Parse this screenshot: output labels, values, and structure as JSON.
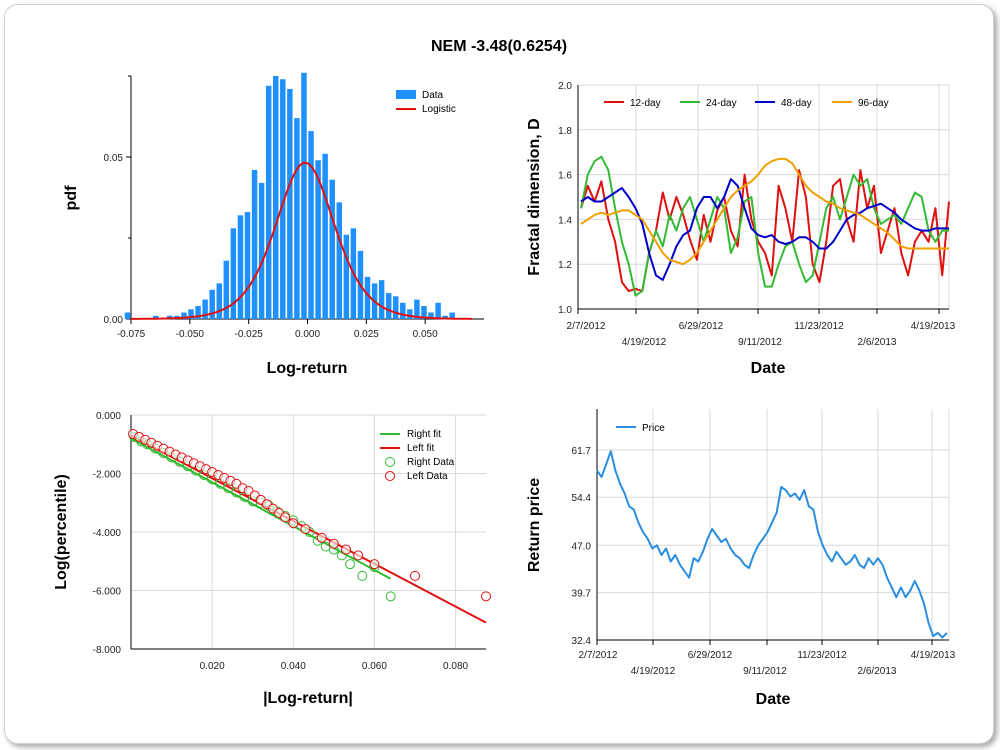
{
  "title": "NEM -3.48(0.6254)",
  "colors": {
    "blue": "#1e90ff",
    "red": "#e01010",
    "green": "#33bb33",
    "dblue": "#0000cc",
    "orange": "#f0a000",
    "price": "#2a8ee0",
    "grid": "#d9d9d9"
  },
  "chart_data": [
    {
      "id": "histogram",
      "type": "bar",
      "xlabel": "Log-return",
      "ylabel": "pdf",
      "xlim": [
        -0.075,
        0.075
      ],
      "ylim": [
        0,
        0.075
      ],
      "xticks": [
        -0.075,
        -0.05,
        -0.025,
        0.0,
        0.025,
        0.05
      ],
      "xtick_labels": [
        "-0.075",
        "-0.050",
        "-0.025",
        "0.000",
        "0.025",
        "0.050"
      ],
      "yticks": [
        0,
        0.05
      ],
      "ytick_labels": [
        "0.00",
        "0.05"
      ],
      "bin_width": 0.003,
      "x": [
        -0.0765,
        -0.0735,
        -0.0705,
        -0.0675,
        -0.0645,
        -0.0615,
        -0.0585,
        -0.0555,
        -0.0525,
        -0.0495,
        -0.0465,
        -0.0435,
        -0.0405,
        -0.0375,
        -0.0345,
        -0.0315,
        -0.0285,
        -0.0255,
        -0.0225,
        -0.0195,
        -0.0165,
        -0.0135,
        -0.0105,
        -0.0075,
        -0.0045,
        -0.0015,
        0.0015,
        0.0045,
        0.0075,
        0.0105,
        0.0135,
        0.0165,
        0.0195,
        0.0225,
        0.0255,
        0.0285,
        0.0315,
        0.0345,
        0.0375,
        0.0405,
        0.0435,
        0.0465,
        0.0495,
        0.0525,
        0.0555,
        0.0585,
        0.0615
      ],
      "values": [
        0.002,
        0,
        0,
        0,
        0.001,
        0,
        0.001,
        0.001,
        0.002,
        0.003,
        0.004,
        0.006,
        0.009,
        0.011,
        0.018,
        0.028,
        0.032,
        0.033,
        0.046,
        0.042,
        0.072,
        0.075,
        0.074,
        0.071,
        0.062,
        0.076,
        0.058,
        0.049,
        0.051,
        0.043,
        0.036,
        0.026,
        0.028,
        0.021,
        0.013,
        0.011,
        0.012,
        0.008,
        0.007,
        0.005,
        0.003,
        0.006,
        0.004,
        0.002,
        0.005,
        0.001,
        0.002
      ],
      "legend": [
        "Data",
        "Logistic"
      ],
      "fit": {
        "name": "Logistic",
        "mu": -0.001,
        "s": 0.0084
      }
    },
    {
      "id": "fractal",
      "type": "line",
      "xlabel": "Date",
      "ylabel": "Fractal dimension, D",
      "ylim": [
        1.0,
        2.0
      ],
      "yticks": [
        1.0,
        1.2,
        1.4,
        1.6,
        1.8,
        2.0
      ],
      "ytick_labels": [
        "1.0",
        "1.2",
        "1.4",
        "1.6",
        "1.8",
        "2.0"
      ],
      "xtick_labels_top": [
        "2/7/2012",
        "6/29/2012",
        "11/23/2012",
        "4/19/2013"
      ],
      "xtick_labels_bottom": [
        "4/19/2012",
        "9/11/2012",
        "2/6/2013"
      ],
      "series": [
        {
          "name": "12-day",
          "color_key": "red",
          "values": [
            1.45,
            1.55,
            1.48,
            1.57,
            1.4,
            1.3,
            1.12,
            1.08,
            1.09,
            1.08,
            1.25,
            1.35,
            1.52,
            1.4,
            1.5,
            1.42,
            1.31,
            1.22,
            1.42,
            1.3,
            1.44,
            1.5,
            1.35,
            1.28,
            1.6,
            1.4,
            1.3,
            1.25,
            1.15,
            1.55,
            1.45,
            1.3,
            1.62,
            1.5,
            1.2,
            1.12,
            1.3,
            1.55,
            1.58,
            1.4,
            1.3,
            1.62,
            1.45,
            1.55,
            1.25,
            1.35,
            1.45,
            1.25,
            1.15,
            1.3,
            1.35,
            1.3,
            1.45,
            1.15,
            1.48
          ]
        },
        {
          "name": "24-day",
          "color_key": "green",
          "values": [
            1.45,
            1.6,
            1.66,
            1.68,
            1.62,
            1.45,
            1.3,
            1.2,
            1.06,
            1.08,
            1.25,
            1.35,
            1.28,
            1.42,
            1.35,
            1.45,
            1.5,
            1.4,
            1.3,
            1.4,
            1.5,
            1.45,
            1.25,
            1.32,
            1.48,
            1.5,
            1.25,
            1.1,
            1.1,
            1.2,
            1.28,
            1.3,
            1.2,
            1.12,
            1.15,
            1.3,
            1.45,
            1.5,
            1.4,
            1.5,
            1.6,
            1.55,
            1.58,
            1.45,
            1.38,
            1.4,
            1.42,
            1.38,
            1.45,
            1.52,
            1.5,
            1.35,
            1.3,
            1.35,
            1.35
          ]
        },
        {
          "name": "48-day",
          "color_key": "dblue",
          "values": [
            1.48,
            1.5,
            1.48,
            1.48,
            1.5,
            1.52,
            1.54,
            1.5,
            1.45,
            1.38,
            1.25,
            1.15,
            1.13,
            1.2,
            1.28,
            1.33,
            1.35,
            1.45,
            1.5,
            1.5,
            1.45,
            1.5,
            1.58,
            1.55,
            1.45,
            1.36,
            1.33,
            1.32,
            1.33,
            1.3,
            1.29,
            1.3,
            1.32,
            1.32,
            1.3,
            1.27,
            1.27,
            1.3,
            1.35,
            1.4,
            1.42,
            1.43,
            1.45,
            1.46,
            1.47,
            1.45,
            1.43,
            1.4,
            1.38,
            1.36,
            1.35,
            1.35,
            1.36,
            1.36,
            1.36
          ]
        },
        {
          "name": "96-day",
          "color_key": "orange",
          "values": [
            1.38,
            1.4,
            1.42,
            1.43,
            1.42,
            1.43,
            1.44,
            1.44,
            1.42,
            1.4,
            1.35,
            1.3,
            1.25,
            1.22,
            1.21,
            1.2,
            1.22,
            1.25,
            1.3,
            1.35,
            1.4,
            1.45,
            1.5,
            1.53,
            1.55,
            1.57,
            1.6,
            1.64,
            1.66,
            1.67,
            1.67,
            1.65,
            1.6,
            1.55,
            1.52,
            1.5,
            1.48,
            1.47,
            1.45,
            1.44,
            1.43,
            1.42,
            1.4,
            1.38,
            1.36,
            1.34,
            1.31,
            1.28,
            1.27,
            1.27,
            1.27,
            1.27,
            1.27,
            1.27,
            1.27
          ]
        }
      ]
    },
    {
      "id": "tail",
      "type": "scatter",
      "xlabel": "|Log-return|",
      "ylabel": "Log(percentile)",
      "xlim": [
        0,
        0.0875
      ],
      "ylim": [
        -8.0,
        0.0
      ],
      "xticks": [
        0.02,
        0.04,
        0.06,
        0.08
      ],
      "xtick_labels": [
        "0.020",
        "0.040",
        "0.060",
        "0.080"
      ],
      "yticks": [
        0,
        -2,
        -4,
        -6,
        -8
      ],
      "ytick_labels": [
        "0.000",
        "-2.000",
        "-4.000",
        "-6.000",
        "-8.000"
      ],
      "legend": [
        "Right fit",
        "Left fit",
        "Right Data",
        "Left Data"
      ],
      "right_fit": {
        "x": [
          0.0,
          0.064
        ],
        "y": [
          -0.8,
          -5.6
        ]
      },
      "left_fit": {
        "x": [
          0.0,
          0.0875
        ],
        "y": [
          -0.7,
          -7.1
        ]
      },
      "right_data": {
        "x": [
          0.0008,
          0.0025,
          0.004,
          0.006,
          0.008,
          0.01,
          0.012,
          0.014,
          0.016,
          0.018,
          0.02,
          0.022,
          0.024,
          0.026,
          0.028,
          0.03,
          0.032,
          0.034,
          0.036,
          0.038,
          0.04,
          0.042,
          0.044,
          0.046,
          0.048,
          0.05,
          0.052,
          0.054,
          0.057,
          0.06,
          0.064
        ],
        "y": [
          -0.75,
          -0.9,
          -1.0,
          -1.15,
          -1.3,
          -1.45,
          -1.6,
          -1.75,
          -1.9,
          -2.05,
          -2.2,
          -2.35,
          -2.5,
          -2.65,
          -2.8,
          -2.95,
          -3.0,
          -3.1,
          -3.3,
          -3.45,
          -3.6,
          -3.8,
          -4.0,
          -4.3,
          -4.5,
          -4.6,
          -4.8,
          -5.1,
          -5.5,
          -5.2,
          -6.2
        ]
      },
      "left_data": {
        "x": [
          0.0005,
          0.002,
          0.0035,
          0.005,
          0.0065,
          0.008,
          0.0095,
          0.011,
          0.0125,
          0.014,
          0.0155,
          0.017,
          0.0185,
          0.02,
          0.0215,
          0.023,
          0.0245,
          0.026,
          0.0275,
          0.029,
          0.0305,
          0.032,
          0.0335,
          0.035,
          0.0365,
          0.038,
          0.04,
          0.043,
          0.047,
          0.05,
          0.053,
          0.056,
          0.06,
          0.07,
          0.0875
        ],
        "y": [
          -0.65,
          -0.75,
          -0.85,
          -0.95,
          -1.05,
          -1.15,
          -1.25,
          -1.35,
          -1.45,
          -1.55,
          -1.65,
          -1.75,
          -1.85,
          -1.95,
          -2.05,
          -2.15,
          -2.25,
          -2.35,
          -2.5,
          -2.6,
          -2.75,
          -2.9,
          -3.05,
          -3.2,
          -3.35,
          -3.5,
          -3.7,
          -3.9,
          -4.2,
          -4.4,
          -4.6,
          -4.8,
          -5.1,
          -5.5,
          -6.2
        ]
      }
    },
    {
      "id": "price",
      "type": "line",
      "xlabel": "Date",
      "ylabel": "Return price",
      "ylim": [
        32.4,
        68
      ],
      "yticks": [
        32.4,
        39.7,
        47.0,
        54.4,
        61.7
      ],
      "ytick_labels": [
        "32.4",
        "39.7",
        "47.0",
        "54.4",
        "61.7"
      ],
      "xtick_labels_top": [
        "2/7/2012",
        "6/29/2012",
        "11/23/2012",
        "4/19/2013"
      ],
      "xtick_labels_bottom": [
        "4/19/2012",
        "9/11/2012",
        "2/6/2013"
      ],
      "legend": [
        "Price"
      ],
      "values": [
        58.5,
        57.5,
        59.5,
        61.5,
        58.5,
        56.5,
        55.0,
        53.0,
        52.5,
        50.5,
        49.0,
        48.0,
        46.5,
        47.0,
        45.5,
        46.5,
        44.5,
        45.5,
        44.0,
        43.0,
        42.0,
        45.0,
        44.5,
        46.0,
        48.0,
        49.5,
        48.5,
        47.5,
        48.0,
        46.5,
        45.5,
        45.0,
        44.0,
        43.5,
        45.5,
        47.0,
        48.0,
        49.0,
        50.5,
        52.0,
        56.0,
        55.5,
        54.5,
        55.0,
        54.0,
        55.5,
        53.0,
        52.5,
        49.0,
        47.0,
        45.5,
        44.5,
        46.0,
        45.0,
        44.0,
        44.5,
        45.5,
        44.0,
        43.5,
        45.0,
        44.0,
        45.0,
        44.0,
        42.0,
        40.5,
        39.0,
        40.5,
        39.0,
        40.0,
        41.5,
        40.0,
        38.0,
        35.0,
        33.0,
        33.5,
        32.8,
        33.5
      ]
    }
  ]
}
